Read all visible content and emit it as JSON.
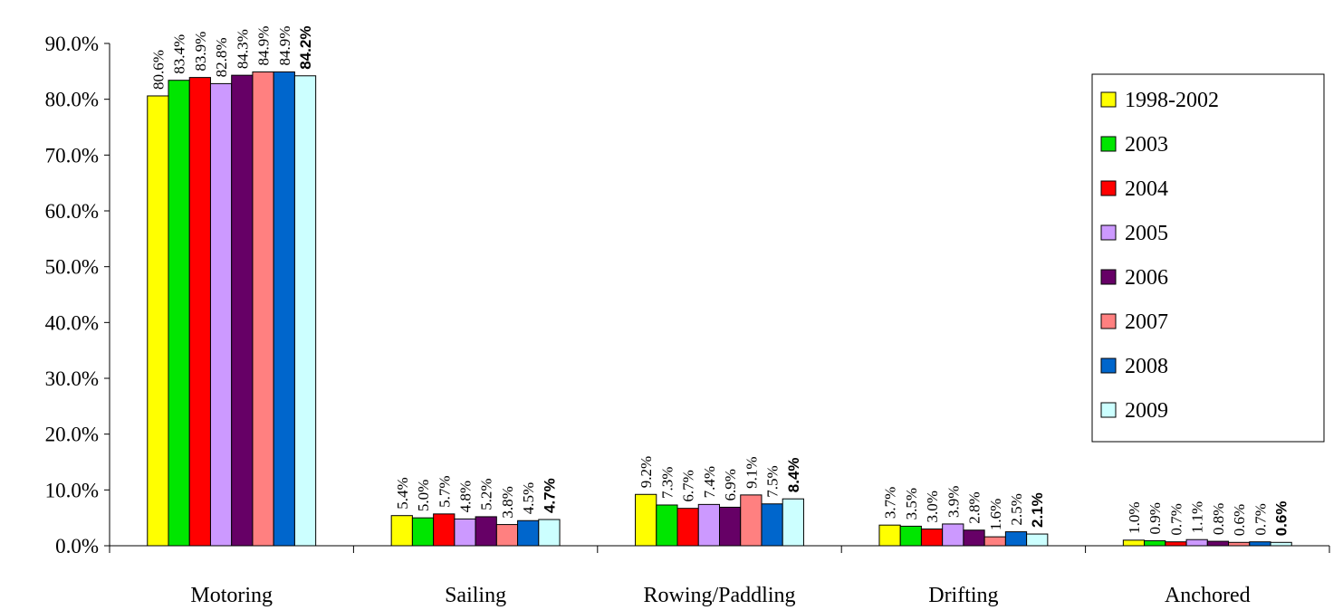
{
  "chart_data": {
    "type": "bar",
    "title": "",
    "xlabel": "",
    "ylabel": "",
    "ylim": [
      0,
      90
    ],
    "y_ticks": [
      "0.0%",
      "10.0%",
      "20.0%",
      "30.0%",
      "40.0%",
      "50.0%",
      "60.0%",
      "70.0%",
      "80.0%",
      "90.0%"
    ],
    "categories": [
      "Motoring",
      "Sailing",
      "Rowing/Paddling",
      "Drifting",
      "Anchored"
    ],
    "grid": false,
    "legend_position": "right",
    "series": [
      {
        "name": "1998-2002",
        "color": "#ffff00",
        "values": [
          80.6,
          5.4,
          9.2,
          3.7,
          1.0
        ],
        "labels": [
          "80.6%",
          "5.4%",
          "9.2%",
          "3.7%",
          "1.0%"
        ]
      },
      {
        "name": "2003",
        "color": "#00e600",
        "values": [
          83.4,
          5.0,
          7.3,
          3.5,
          0.9
        ],
        "labels": [
          "83.4%",
          "5.0%",
          "7.3%",
          "3.5%",
          "0.9%"
        ]
      },
      {
        "name": "2004",
        "color": "#ff0000",
        "values": [
          83.9,
          5.7,
          6.7,
          3.0,
          0.7
        ],
        "labels": [
          "83.9%",
          "5.7%",
          "6.7%",
          "3.0%",
          "0.7%"
        ]
      },
      {
        "name": "2005",
        "color": "#cc99ff",
        "values": [
          82.8,
          4.8,
          7.4,
          3.9,
          1.1
        ],
        "labels": [
          "82.8%",
          "4.8%",
          "7.4%",
          "3.9%",
          "1.1%"
        ]
      },
      {
        "name": "2006",
        "color": "#660066",
        "values": [
          84.3,
          5.2,
          6.9,
          2.8,
          0.8
        ],
        "labels": [
          "84.3%",
          "5.2%",
          "6.9%",
          "2.8%",
          "0.8%"
        ]
      },
      {
        "name": "2007",
        "color": "#ff8080",
        "values": [
          84.9,
          3.8,
          9.1,
          1.6,
          0.6
        ],
        "labels": [
          "84.9%",
          "3.8%",
          "9.1%",
          "1.6%",
          "0.6%"
        ]
      },
      {
        "name": "2008",
        "color": "#0066cc",
        "values": [
          84.9,
          4.5,
          7.5,
          2.5,
          0.7
        ],
        "labels": [
          "84.9%",
          "4.5%",
          "7.5%",
          "2.5%",
          "0.7%"
        ]
      },
      {
        "name": "2009",
        "color": "#ccffff",
        "values": [
          84.2,
          4.7,
          8.4,
          2.1,
          0.6
        ],
        "labels": [
          "84.2%",
          "4.7%",
          "8.4%",
          "2.1%",
          "0.6%"
        ]
      }
    ]
  }
}
